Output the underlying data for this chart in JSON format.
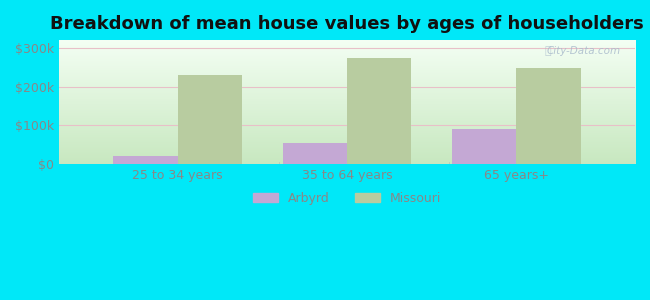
{
  "title": "Breakdown of mean house values by ages of householders",
  "categories": [
    "25 to 34 years",
    "35 to 64 years",
    "65 years+"
  ],
  "arbyrd_values": [
    22000,
    55000,
    92000
  ],
  "missouri_values": [
    230000,
    275000,
    248000
  ],
  "arbyrd_color": "#c4a8d4",
  "missouri_color": "#b8ccA0",
  "bar_width": 0.38,
  "ylim": [
    0,
    320000
  ],
  "yticks": [
    0,
    100000,
    200000,
    300000
  ],
  "ytick_labels": [
    "$0",
    "$100k",
    "$200k",
    "$300k"
  ],
  "bg_top_color": "#f4fff4",
  "bg_bottom_color": "#c8e8c0",
  "outer_bg": "#00e8f8",
  "title_fontsize": 13,
  "legend_labels": [
    "Arbyrd",
    "Missouri"
  ],
  "watermark": "City-Data.com",
  "grid_color": "#e8c0c8",
  "tick_color": "#888888",
  "tick_fontsize": 9
}
